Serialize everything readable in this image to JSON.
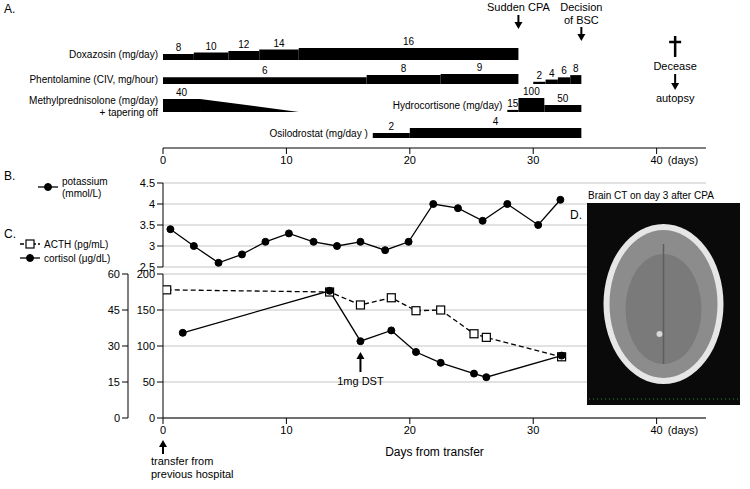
{
  "chart_data": [
    {
      "panel": "A.",
      "type": "timeline",
      "xlim": [
        0,
        44
      ],
      "xticks": [
        0,
        10,
        20,
        30,
        40
      ],
      "xunit": "(days)",
      "series": [
        {
          "name": "Doxazosin (mg/day)",
          "color": "#000000",
          "segments": [
            {
              "start": 0,
              "end": 2.5,
              "dose": 8
            },
            {
              "start": 2.5,
              "end": 5.3,
              "dose": 10
            },
            {
              "start": 5.3,
              "end": 7.8,
              "dose": 12
            },
            {
              "start": 7.8,
              "end": 11,
              "dose": 14
            },
            {
              "start": 11,
              "end": 28.8,
              "dose": 16
            }
          ]
        },
        {
          "name": "Phentolamine (CIV, mg/hour)",
          "color": "#000000",
          "segments": [
            {
              "start": 0,
              "end": 16.5,
              "dose": 6
            },
            {
              "start": 16.5,
              "end": 22.5,
              "dose": 8
            },
            {
              "start": 22.5,
              "end": 28.8,
              "dose": 9
            },
            {
              "start": 30,
              "end": 31,
              "dose": 2
            },
            {
              "start": 31,
              "end": 32,
              "dose": 4
            },
            {
              "start": 32,
              "end": 33,
              "dose": 6
            },
            {
              "start": 33,
              "end": 33.9,
              "dose": 8
            }
          ]
        },
        {
          "name": "Methylprednisolone (mg/day)",
          "note": "+ tapering off",
          "color": "#000000",
          "segments": [
            {
              "start": 0,
              "end": 3,
              "dose": 40
            },
            {
              "start": 3,
              "end": 11,
              "taper": [
                40,
                0
              ]
            }
          ]
        },
        {
          "name": "Hydrocortisone (mg/day)",
          "color": "#000000",
          "segments": [
            {
              "start": 27.9,
              "end": 28.8,
              "dose": 15
            },
            {
              "start": 28.8,
              "end": 30.9,
              "dose": 100
            },
            {
              "start": 30.9,
              "end": 33.9,
              "dose": 50
            }
          ]
        },
        {
          "name": "Osilodrostat (mg/day )",
          "color": "#000000",
          "segments": [
            {
              "start": 17,
              "end": 20,
              "dose": 2
            },
            {
              "start": 20,
              "end": 33.9,
              "dose": 4
            }
          ]
        }
      ],
      "annotations": [
        {
          "text": "Sudden CPA",
          "x": 28.8
        },
        {
          "text": "Decision of BSC",
          "x": 33.9
        },
        {
          "text": "Decease",
          "x": 41.5,
          "note": "autopsy"
        }
      ]
    },
    {
      "panel": "B.",
      "type": "line",
      "xlim": [
        0,
        44
      ],
      "ylim": [
        2.5,
        4.5
      ],
      "yticks": [
        2.5,
        3,
        3.5,
        4,
        4.5
      ],
      "grid": true,
      "tick_labels": "y",
      "legend": "top-left",
      "series": [
        {
          "name": "potassium (mmol/L)",
          "color": "#000000",
          "marker": "circle",
          "line_style": "solid",
          "x": [
            0.6,
            2.5,
            4.5,
            6.4,
            8.3,
            10.2,
            12.2,
            14.1,
            16,
            18,
            19.9,
            21.9,
            23.9,
            25.9,
            27.9,
            30.4,
            32.2
          ],
          "values": [
            3.4,
            3.0,
            2.6,
            2.8,
            3.1,
            3.3,
            3.1,
            3.0,
            3.1,
            2.9,
            3.1,
            4.0,
            3.9,
            3.6,
            4.0,
            3.5,
            4.1
          ]
        }
      ]
    },
    {
      "panel": "C.",
      "type": "line",
      "xlim": [
        0,
        44
      ],
      "xticks": [
        0,
        10,
        20,
        30,
        40
      ],
      "xunit": "(days)",
      "xlabel": "Days from transfer",
      "ylim": [
        0,
        200
      ],
      "yticks": [
        0,
        50,
        100,
        150,
        200
      ],
      "y2lim": [
        0,
        60
      ],
      "y2ticks": [
        0,
        15,
        30,
        45,
        60
      ],
      "grid": true,
      "legend": "top-left",
      "series": [
        {
          "name": "ACTH (pg/mL)",
          "color": "#000000",
          "marker": "square",
          "line_style": "dashed",
          "x": [
            0.3,
            13.5,
            16,
            18.5,
            20.5,
            22.5,
            25.2,
            26.2,
            32.3
          ],
          "values": [
            178,
            175,
            157,
            167,
            149,
            150,
            117,
            112,
            85
          ]
        },
        {
          "name": "cortisol (μg/dL)",
          "axis": "y2",
          "color": "#000000",
          "marker": "circle",
          "line_style": "solid",
          "x": [
            1.6,
            13.5,
            16,
            18.5,
            20.5,
            22.5,
            25.2,
            26.2,
            32.3
          ],
          "values": [
            35.5,
            53,
            32,
            36.5,
            27.5,
            23,
            18.5,
            17,
            26
          ]
        }
      ],
      "annotations": [
        {
          "text": "1mg DST",
          "x": 16
        },
        {
          "text": "transfer from previous hospital",
          "x": 0
        }
      ]
    },
    {
      "panel": "D.",
      "type": "image",
      "title": "Brain CT on day 3 after CPA"
    }
  ]
}
